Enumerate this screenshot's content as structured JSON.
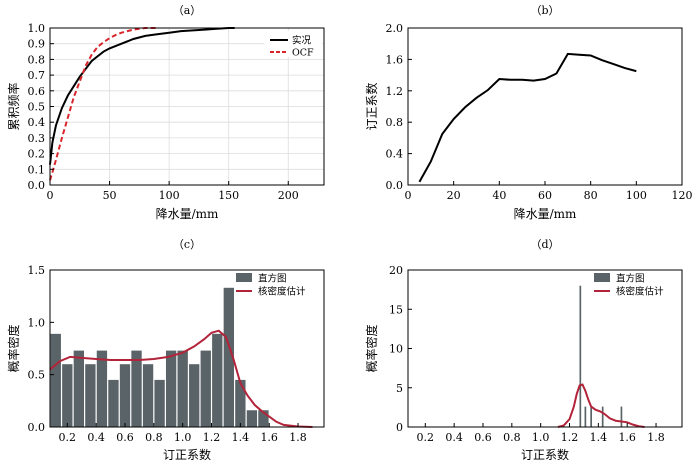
{
  "chart_data": [
    {
      "type": "line",
      "panel": "(a)",
      "title": "（a）",
      "xlabel": "降水量/mm",
      "ylabel": "累积频率",
      "xlim": [
        0,
        230
      ],
      "ylim": [
        0,
        1.0
      ],
      "xticks": [
        0,
        50,
        100,
        150,
        200
      ],
      "yticks": [
        0,
        0.1,
        0.2,
        0.3,
        0.4,
        0.5,
        0.6,
        0.7,
        0.8,
        0.9,
        1.0
      ],
      "grid": true,
      "legend": "top-right",
      "series": [
        {
          "name": "实况",
          "color": "#000000",
          "dash": "solid",
          "x": [
            0,
            2,
            5,
            10,
            15,
            20,
            25,
            30,
            35,
            40,
            45,
            50,
            60,
            70,
            80,
            90,
            100,
            110,
            120,
            130,
            140,
            150,
            155
          ],
          "y": [
            0.13,
            0.27,
            0.38,
            0.49,
            0.57,
            0.63,
            0.69,
            0.74,
            0.79,
            0.82,
            0.85,
            0.87,
            0.9,
            0.93,
            0.95,
            0.96,
            0.97,
            0.98,
            0.985,
            0.99,
            0.995,
            1.0,
            1.0
          ]
        },
        {
          "name": "OCF",
          "color": "#d9262c",
          "dash": "dashed",
          "x": [
            0,
            2,
            5,
            10,
            15,
            20,
            25,
            30,
            35,
            40,
            45,
            50,
            55,
            60,
            65,
            70,
            75,
            80,
            85,
            90
          ],
          "y": [
            0.03,
            0.08,
            0.16,
            0.3,
            0.43,
            0.56,
            0.66,
            0.76,
            0.83,
            0.88,
            0.91,
            0.935,
            0.955,
            0.97,
            0.98,
            0.99,
            0.995,
            1.0,
            1.0,
            1.0
          ]
        }
      ]
    },
    {
      "type": "line",
      "panel": "(b)",
      "title": "（b）",
      "xlabel": "降水量/mm",
      "ylabel": "订正系数",
      "xlim": [
        0,
        120
      ],
      "ylim": [
        0,
        2.0
      ],
      "xticks": [
        0,
        20,
        40,
        60,
        80,
        100,
        120
      ],
      "yticks": [
        0,
        0.4,
        0.8,
        1.2,
        1.6,
        2.0
      ],
      "grid": false,
      "series": [
        {
          "name": "",
          "color": "#000000",
          "x": [
            5,
            10,
            15,
            20,
            25,
            30,
            35,
            40,
            45,
            50,
            55,
            60,
            65,
            70,
            75,
            80,
            85,
            90,
            95,
            100
          ],
          "y": [
            0.04,
            0.3,
            0.65,
            0.84,
            0.99,
            1.11,
            1.21,
            1.35,
            1.34,
            1.34,
            1.33,
            1.35,
            1.42,
            1.67,
            1.66,
            1.65,
            1.59,
            1.54,
            1.49,
            1.45
          ]
        }
      ]
    },
    {
      "type": "bar",
      "panel": "(c)",
      "title": "（c）",
      "xlabel": "订正系数",
      "ylabel": "概率密度",
      "xlim": [
        0.08,
        1.98
      ],
      "ylim": [
        0,
        1.5
      ],
      "xticks": [
        0.2,
        0.4,
        0.6,
        0.8,
        1.0,
        1.2,
        1.4,
        1.6,
        1.8
      ],
      "yticks": [
        0,
        0.5,
        1.0,
        1.5
      ],
      "legend": "top-right",
      "bar_color": "#5a6468",
      "line_color": "#b3243a",
      "histogram_name": "直方图",
      "kde_name": "核密度估计",
      "bins": [
        {
          "x0": 0.08,
          "x1": 0.16,
          "value": 0.89
        },
        {
          "x0": 0.16,
          "x1": 0.24,
          "value": 0.6
        },
        {
          "x0": 0.24,
          "x1": 0.32,
          "value": 0.73
        },
        {
          "x0": 0.32,
          "x1": 0.4,
          "value": 0.6
        },
        {
          "x0": 0.4,
          "x1": 0.48,
          "value": 0.73
        },
        {
          "x0": 0.48,
          "x1": 0.56,
          "value": 0.45
        },
        {
          "x0": 0.56,
          "x1": 0.64,
          "value": 0.6
        },
        {
          "x0": 0.64,
          "x1": 0.72,
          "value": 0.73
        },
        {
          "x0": 0.72,
          "x1": 0.8,
          "value": 0.6
        },
        {
          "x0": 0.8,
          "x1": 0.88,
          "value": 0.45
        },
        {
          "x0": 0.88,
          "x1": 0.96,
          "value": 0.73
        },
        {
          "x0": 0.96,
          "x1": 1.04,
          "value": 0.73
        },
        {
          "x0": 1.04,
          "x1": 1.12,
          "value": 0.6
        },
        {
          "x0": 1.12,
          "x1": 1.2,
          "value": 0.73
        },
        {
          "x0": 1.2,
          "x1": 1.28,
          "value": 0.89
        },
        {
          "x0": 1.28,
          "x1": 1.36,
          "value": 1.33
        },
        {
          "x0": 1.36,
          "x1": 1.44,
          "value": 0.45
        },
        {
          "x0": 1.44,
          "x1": 1.52,
          "value": 0.16
        },
        {
          "x0": 1.52,
          "x1": 1.6,
          "value": 0.16
        }
      ],
      "kde": {
        "x": [
          0.08,
          0.15,
          0.22,
          0.3,
          0.4,
          0.5,
          0.6,
          0.7,
          0.8,
          0.9,
          1.0,
          1.08,
          1.15,
          1.2,
          1.25,
          1.3,
          1.35,
          1.4,
          1.45,
          1.5,
          1.55,
          1.6,
          1.65,
          1.7,
          1.8,
          1.9
        ],
        "y": [
          0.55,
          0.63,
          0.67,
          0.66,
          0.65,
          0.64,
          0.64,
          0.64,
          0.65,
          0.67,
          0.71,
          0.77,
          0.84,
          0.9,
          0.92,
          0.86,
          0.66,
          0.42,
          0.3,
          0.21,
          0.15,
          0.1,
          0.05,
          0.02,
          0.005,
          0.0
        ]
      }
    },
    {
      "type": "bar",
      "panel": "(d)",
      "title": "（d）",
      "xlabel": "订正系数",
      "ylabel": "概率密度",
      "xlim": [
        0.08,
        1.98
      ],
      "ylim": [
        0,
        20
      ],
      "xticks": [
        0.2,
        0.4,
        0.6,
        0.8,
        1.0,
        1.2,
        1.4,
        1.6,
        1.8
      ],
      "yticks": [
        0,
        5,
        10,
        15,
        20
      ],
      "legend": "top-right",
      "bar_color": "#5a6468",
      "line_color": "#b3243a",
      "histogram_name": "直方图",
      "kde_name": "核密度估计",
      "bins": [
        {
          "x0": 1.265,
          "x1": 1.285,
          "value": 18.0
        },
        {
          "x0": 1.3,
          "x1": 1.32,
          "value": 2.6
        },
        {
          "x0": 1.34,
          "x1": 1.36,
          "value": 2.6
        },
        {
          "x0": 1.42,
          "x1": 1.44,
          "value": 2.6
        },
        {
          "x0": 1.55,
          "x1": 1.57,
          "value": 2.6
        }
      ],
      "kde": {
        "x": [
          1.12,
          1.16,
          1.2,
          1.23,
          1.25,
          1.27,
          1.29,
          1.31,
          1.33,
          1.35,
          1.38,
          1.41,
          1.44,
          1.48,
          1.52,
          1.56,
          1.6,
          1.64,
          1.68,
          1.72
        ],
        "y": [
          0.0,
          0.2,
          1.0,
          2.6,
          4.2,
          5.3,
          5.4,
          4.6,
          3.5,
          2.6,
          2.2,
          2.0,
          1.7,
          1.1,
          0.8,
          0.7,
          0.6,
          0.3,
          0.1,
          0.0
        ]
      }
    }
  ]
}
